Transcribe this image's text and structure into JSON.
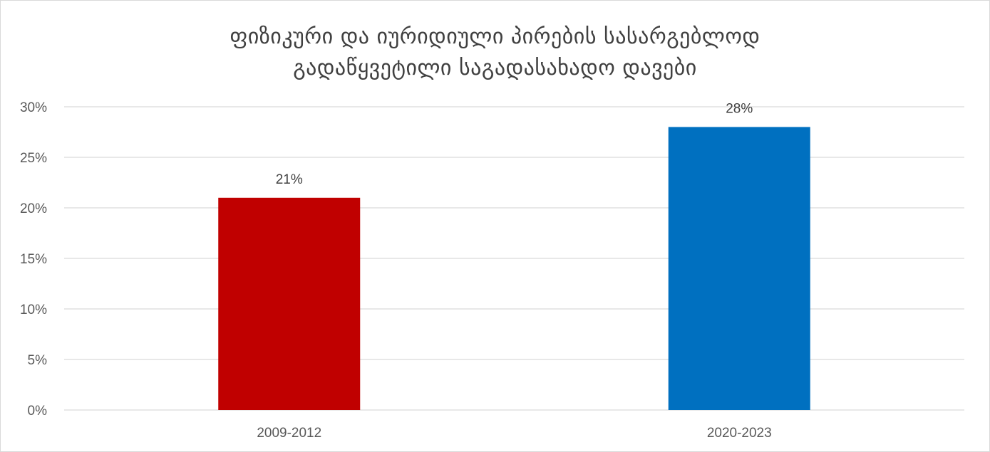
{
  "chart_data": {
    "type": "bar",
    "title_lines": [
      "ფიზიკური და იურიდიული პირების სასარგებლოდ",
      "გადაწყვეტილი საგადასახადო დავები"
    ],
    "categories": [
      "2009-2012",
      "2020-2023"
    ],
    "values": [
      21,
      28
    ],
    "value_labels": [
      "21%",
      "28%"
    ],
    "bar_colors": [
      "#C00000",
      "#0070C0"
    ],
    "ylim": [
      0,
      30
    ],
    "y_ticks": [
      0,
      5,
      10,
      15,
      20,
      25,
      30
    ],
    "y_tick_labels": [
      "0%",
      "5%",
      "10%",
      "15%",
      "20%",
      "25%",
      "30%"
    ],
    "grid": true,
    "legend": "none",
    "xlabel": "",
    "ylabel": ""
  }
}
